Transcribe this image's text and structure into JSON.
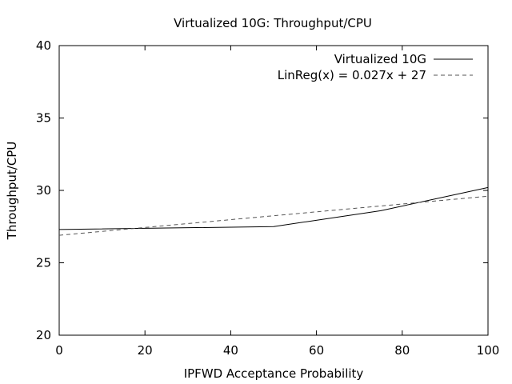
{
  "chart_data": {
    "type": "line",
    "title": "Virtualized 10G: Throughput/CPU",
    "xlabel": "IPFWD Acceptance Probability",
    "ylabel": "Throughput/CPU",
    "xlim": [
      0,
      100
    ],
    "ylim": [
      20,
      40
    ],
    "x_ticks": [
      0,
      20,
      40,
      60,
      80,
      100
    ],
    "y_ticks": [
      20,
      25,
      30,
      35,
      40
    ],
    "grid": false,
    "legend_position": "top-right",
    "series": [
      {
        "name": "Virtualized 10G",
        "style": "solid",
        "color": "#000000",
        "x": [
          0,
          25,
          50,
          75,
          100
        ],
        "y": [
          27.3,
          27.4,
          27.5,
          28.6,
          30.2
        ]
      },
      {
        "name": "LinReg(x) = 0.027x + 27",
        "style": "dashed",
        "color": "#555555",
        "x": [
          0,
          100
        ],
        "y": [
          26.9,
          29.6
        ]
      }
    ]
  }
}
